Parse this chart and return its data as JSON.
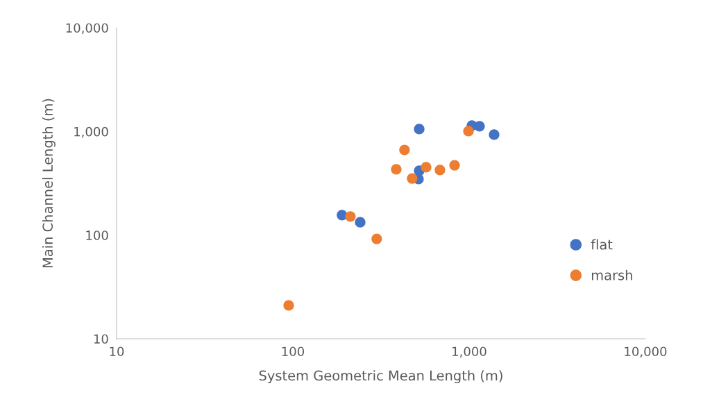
{
  "chart_data": {
    "type": "scatter",
    "xlabel": "System Geometric Mean Length (m)",
    "ylabel": "Main Channel Length (m)",
    "log": "xy",
    "xlim": [
      10,
      10000
    ],
    "ylim": [
      10,
      10000
    ],
    "xticks": [
      10,
      100,
      {
        "value": 1000,
        "label": "1,000"
      },
      {
        "value": 10000,
        "label": "10,000"
      }
    ],
    "yticks": [
      10,
      100,
      {
        "value": 1000,
        "label": "1,000"
      },
      {
        "value": 10000,
        "label": "10,000"
      }
    ],
    "grid": false,
    "legend": "right",
    "marker": "circle",
    "series": [
      {
        "name": "flat",
        "color": "#4472c4",
        "x": [
          190,
          241,
          521,
          521,
          516,
          1037,
          1146,
          1386
        ],
        "values": [
          156,
          133,
          1054,
          418,
          347,
          1138,
          1122,
          931
        ]
      },
      {
        "name": "marsh",
        "color": "#ed7d31",
        "x": [
          94.7,
          212,
          299,
          386,
          430,
          475,
          570,
          683,
          827,
          991
        ],
        "values": [
          21,
          151,
          92,
          431,
          663,
          352,
          451,
          424,
          472,
          1007
        ]
      }
    ]
  }
}
